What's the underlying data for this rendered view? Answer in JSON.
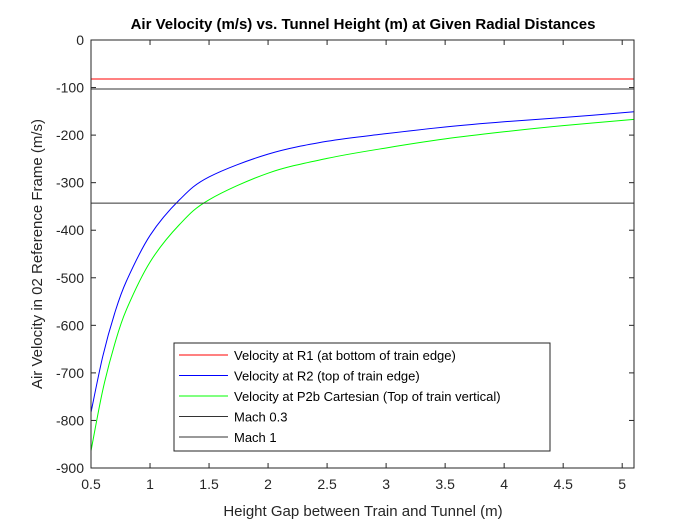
{
  "chart_data": {
    "type": "line",
    "title": "Air Velocity (m/s) vs. Tunnel Height (m) at Given Radial Distances",
    "xlabel": "Height Gap between Train and Tunnel (m)",
    "ylabel": "Air Velocity in 02 Reference Frame (m/s)",
    "xlim": [
      0.5,
      5.1
    ],
    "ylim": [
      -900,
      0
    ],
    "xticks": [
      0.5,
      1,
      1.5,
      2,
      2.5,
      3,
      3.5,
      4,
      4.5,
      5
    ],
    "xtick_labels": [
      "0.5",
      "1",
      "1.5",
      "2",
      "2.5",
      "3",
      "3.5",
      "4",
      "4.5",
      "5"
    ],
    "yticks": [
      0,
      -100,
      -200,
      -300,
      -400,
      -500,
      -600,
      -700,
      -800,
      -900
    ],
    "ytick_labels": [
      "0",
      "-100",
      "-200",
      "-300",
      "-400",
      "-500",
      "-600",
      "-700",
      "-800",
      "-900"
    ],
    "grid": false,
    "legend_position": "bottom-center",
    "x": [
      0.5,
      0.6,
      0.7,
      0.8,
      1.0,
      1.25,
      1.5,
      2.0,
      2.5,
      3.0,
      3.5,
      4.0,
      4.5,
      5.1
    ],
    "series": [
      {
        "name": "Velocity at R1 (at bottom of train edge)",
        "color": "#ff0000",
        "values": [
          -82,
          -82,
          -82,
          -82,
          -82,
          -82,
          -82,
          -82,
          -82,
          -82,
          -82,
          -82,
          -82,
          -82
        ]
      },
      {
        "name": "Velocity at R2 (top of train edge)",
        "color": "#0000ff",
        "values": [
          -783,
          -665,
          -575,
          -507,
          -411,
          -336,
          -288,
          -240,
          -213,
          -197,
          -183,
          -172,
          -163,
          -151
        ]
      },
      {
        "name": "Velocity at P2b Cartesian (Top of train vertical)",
        "color": "#00ff00",
        "values": [
          -864,
          -736,
          -640,
          -567,
          -467,
          -388,
          -336,
          -280,
          -249,
          -227,
          -208,
          -193,
          -180,
          -167
        ]
      },
      {
        "name": "Mach 0.3",
        "color": "#333333",
        "values": [
          -103,
          -103,
          -103,
          -103,
          -103,
          -103,
          -103,
          -103,
          -103,
          -103,
          -103,
          -103,
          -103,
          -103
        ]
      },
      {
        "name": "Mach 1",
        "color": "#333333",
        "values": [
          -343,
          -343,
          -343,
          -343,
          -343,
          -343,
          -343,
          -343,
          -343,
          -343,
          -343,
          -343,
          -343,
          -343
        ]
      }
    ]
  }
}
